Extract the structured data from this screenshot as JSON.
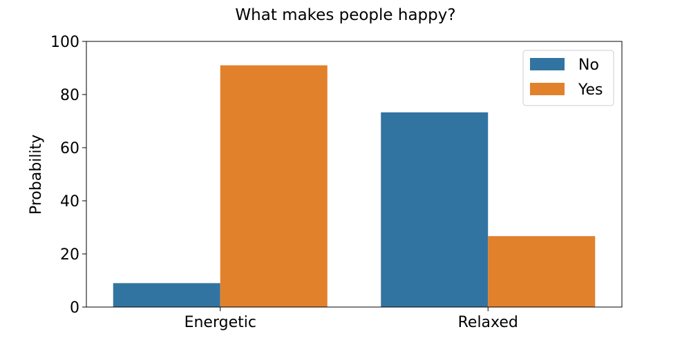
{
  "chart_data": {
    "type": "bar",
    "title": "What makes people happy?",
    "xlabel": "",
    "ylabel": "Probability",
    "categories": [
      "Energetic",
      "Relaxed"
    ],
    "series": [
      {
        "name": "No",
        "color": "#3274a1",
        "values": [
          9,
          73.3
        ]
      },
      {
        "name": "Yes",
        "color": "#e1812c",
        "values": [
          91,
          26.7
        ]
      }
    ],
    "ylim": [
      0,
      100
    ],
    "yticks": [
      0,
      20,
      40,
      60,
      80,
      100
    ],
    "grid": false,
    "legend_position": "top-right"
  }
}
